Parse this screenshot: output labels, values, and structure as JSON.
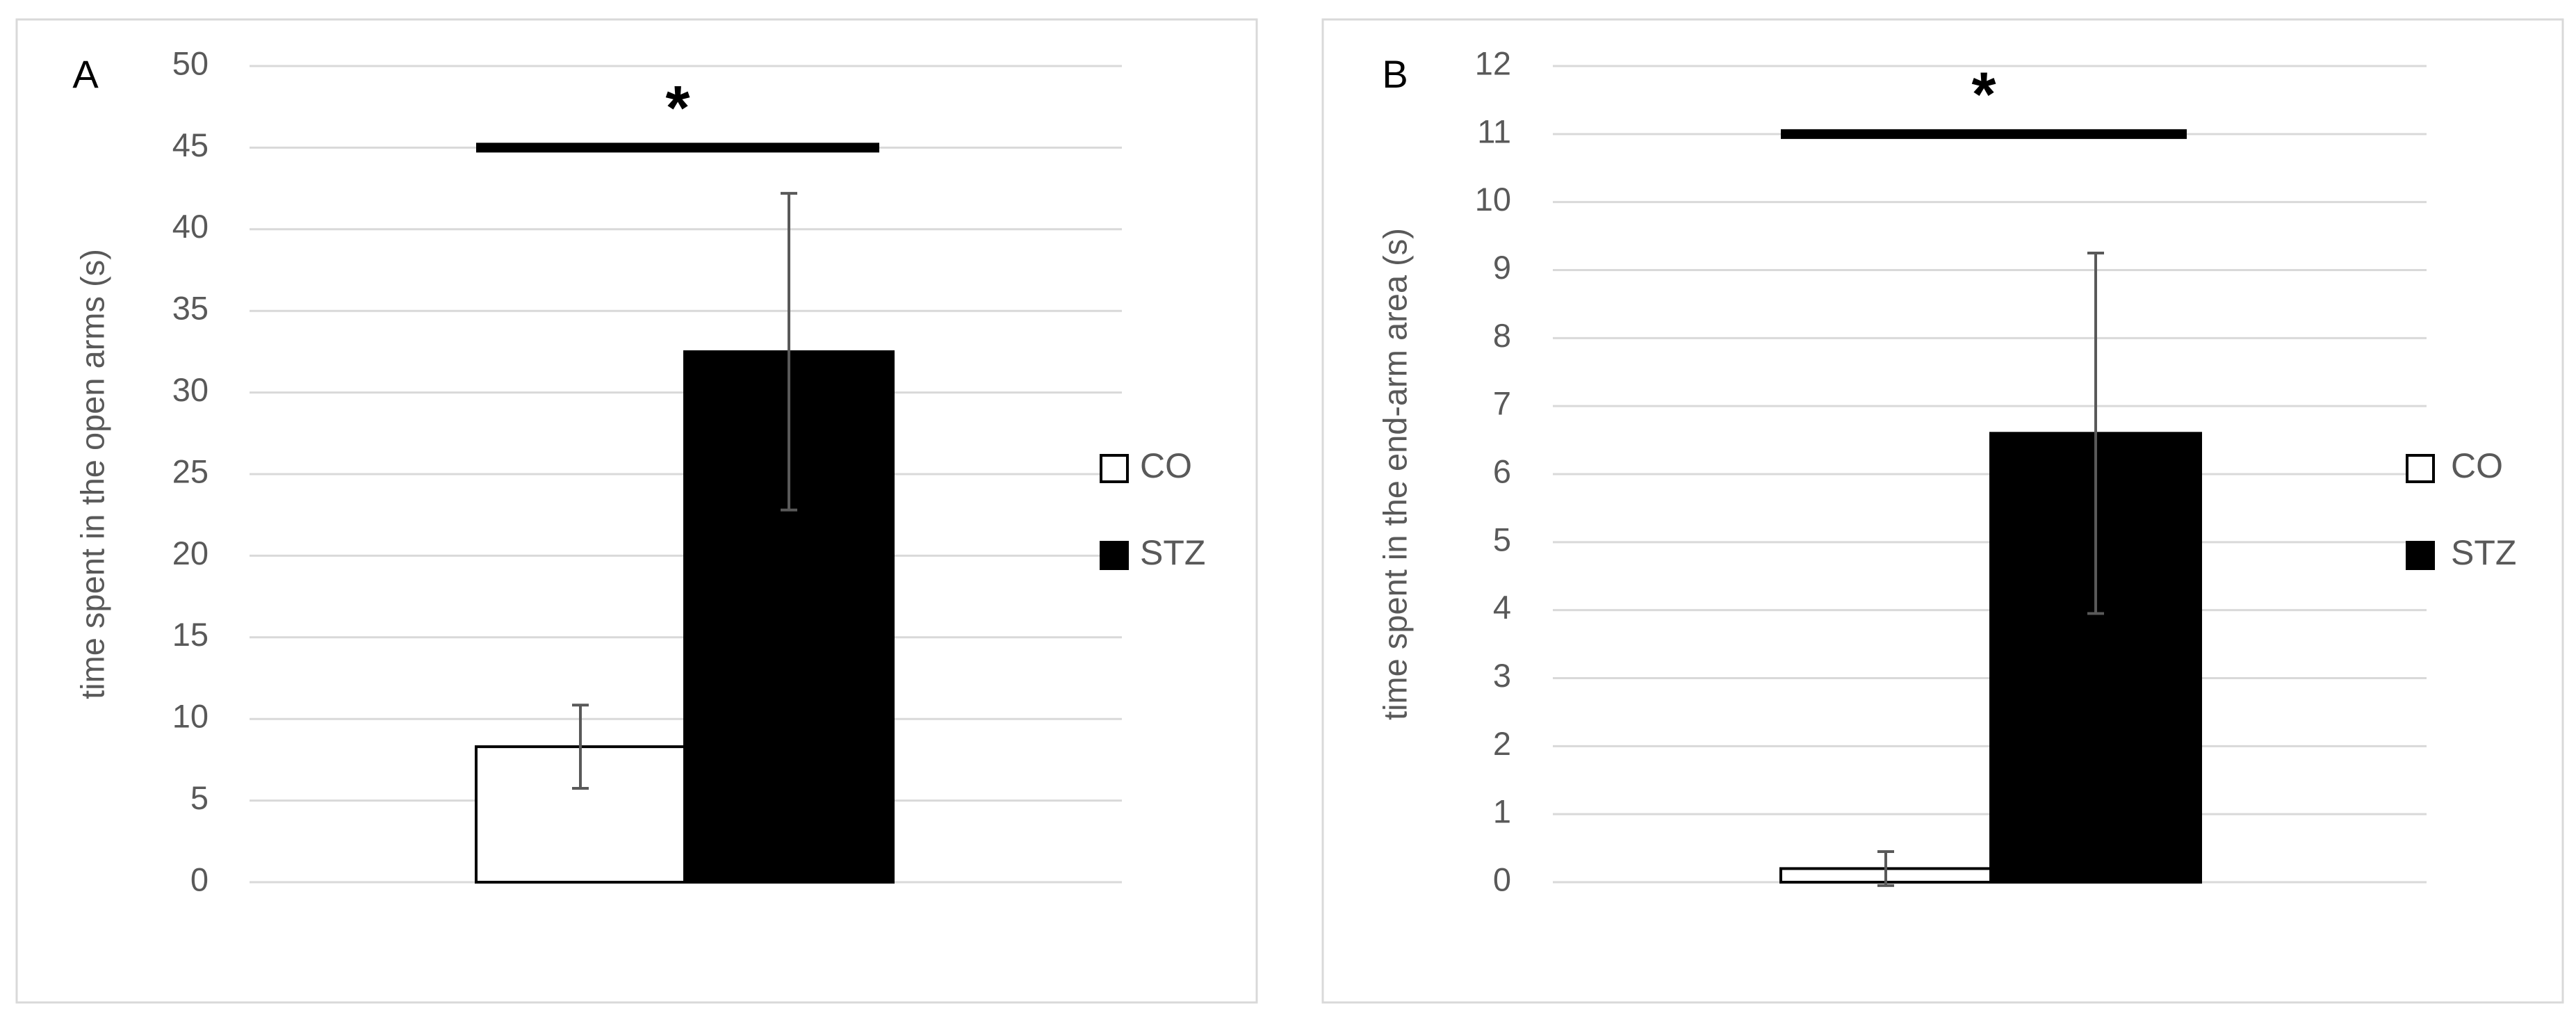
{
  "chart_data": [
    {
      "type": "bar",
      "panel_label": "A",
      "ylabel": "time spent in the open arms (s)",
      "categories": [
        null
      ],
      "series": [
        {
          "name": "CO",
          "color": "#ffffff",
          "values": [
            8.3
          ],
          "errors": [
            2.55
          ]
        },
        {
          "name": "STZ",
          "color": "#000000",
          "values": [
            32.5
          ],
          "errors": [
            9.7
          ]
        }
      ],
      "ylim": [
        0,
        50
      ],
      "yticks": [
        0,
        5,
        10,
        15,
        20,
        25,
        30,
        35,
        40,
        45,
        50
      ],
      "grid": true,
      "legend": "right",
      "annotations": [
        {
          "text": "*",
          "y": 45
        }
      ]
    },
    {
      "type": "bar",
      "panel_label": "B",
      "ylabel": "time spent in the end-arm area (s)",
      "categories": [
        null
      ],
      "series": [
        {
          "name": "CO",
          "color": "#ffffff",
          "values": [
            0.2
          ],
          "errors": [
            0.25
          ]
        },
        {
          "name": "STZ",
          "color": "#000000",
          "values": [
            6.6
          ],
          "errors": [
            2.65
          ]
        }
      ],
      "ylim": [
        0,
        12
      ],
      "yticks": [
        0,
        1,
        2,
        3,
        4,
        5,
        6,
        7,
        8,
        9,
        10,
        11,
        12
      ],
      "grid": true,
      "legend": "right",
      "annotations": [
        {
          "text": "*",
          "y": 11
        }
      ]
    }
  ]
}
